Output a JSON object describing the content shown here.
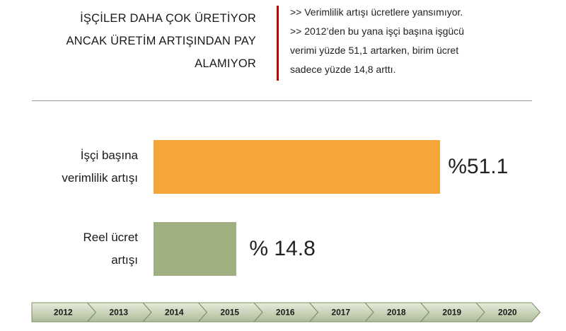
{
  "header": {
    "title": "İŞÇİLER DAHA ÇOK ÜRETİYOR\nANCAK ÜRETİM ARTIŞINDAN PAY\nALAMIYOR",
    "notes": [
      ">> Verimlilik artışı ücretlere yansımıyor.",
      ">> 2012’den bu yana işçi başına işgücü\nverimi yüzde 51,1 artarken, birim ücret\nsadece yüzde 14,8 arttı."
    ]
  },
  "chart_data": {
    "type": "bar",
    "orientation": "horizontal",
    "categories": [
      "İşçi başına\nverimlilik artışı",
      "Reel ücret\nartışı"
    ],
    "values": [
      51.1,
      14.8
    ],
    "value_labels": [
      "%51.1",
      "% 14.8"
    ],
    "colors": [
      "#f4a63a",
      "#a1b080"
    ]
  },
  "timeline": [
    2012,
    2013,
    2014,
    2015,
    2016,
    2017,
    2018,
    2019,
    2020
  ]
}
